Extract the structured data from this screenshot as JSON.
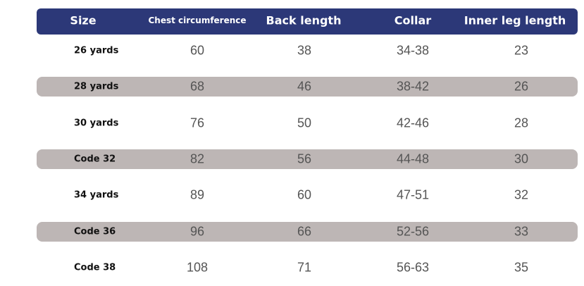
{
  "table": {
    "header": [
      "Size",
      "Chest circumference",
      "Back length",
      "Collar",
      "Inner leg length"
    ],
    "rows": [
      [
        "26 yards",
        "60",
        "38",
        "34-38",
        "23"
      ],
      [
        "28 yards",
        "68",
        "46",
        "38-42",
        "26"
      ],
      [
        "30 yards",
        "76",
        "50",
        "42-46",
        "28"
      ],
      [
        "Code 32",
        "82",
        "56",
        "44-48",
        "30"
      ],
      [
        "34 yards",
        "89",
        "60",
        "47-51",
        "32"
      ],
      [
        "Code 36",
        "96",
        "66",
        "52-56",
        "33"
      ],
      [
        "Code 38",
        "108",
        "71",
        "56-63",
        "35"
      ]
    ]
  }
}
